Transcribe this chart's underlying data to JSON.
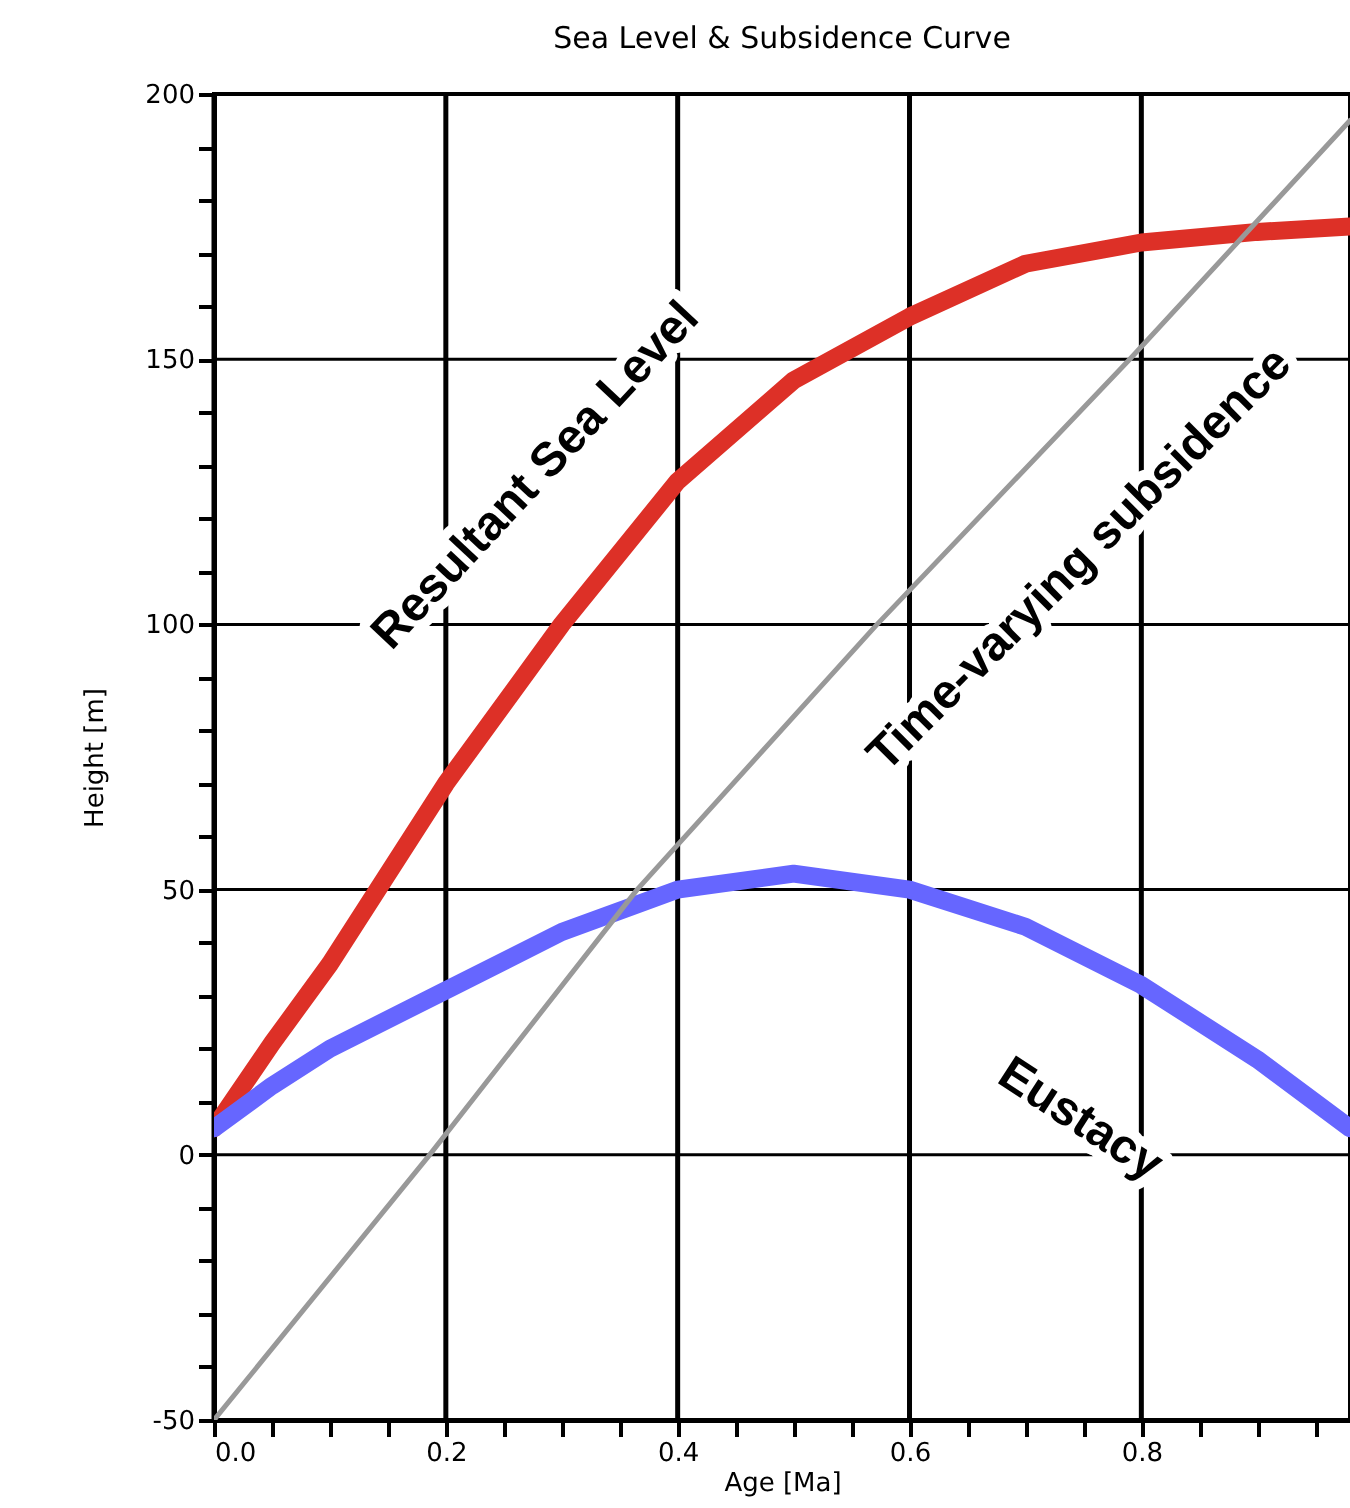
{
  "chart_data": {
    "type": "line",
    "title": "Sea Level & Subsidence Curve",
    "xlabel": "Age [Ma]",
    "ylabel": "Height [m]",
    "x": [
      0,
      0.05,
      0.1,
      0.2,
      0.3,
      0.4,
      0.5,
      0.6,
      0.7,
      0.8,
      0.9,
      0.98
    ],
    "series": [
      {
        "color": "#dd3027",
        "values": [
          5,
          21,
          36,
          70,
          100,
          127,
          146,
          158,
          168,
          172,
          174,
          175
        ]
      },
      {
        "color": "#6666ff",
        "values": [
          5,
          13,
          20,
          31,
          42,
          50,
          53,
          50,
          43,
          32,
          18,
          5
        ]
      },
      {
        "color": "#999999",
        "x": [
          0,
          0.186,
          0.365,
          0.572,
          0.79,
          0.98
        ],
        "values": [
          -50,
          0,
          50,
          100,
          150,
          195
        ]
      }
    ],
    "xlim": [
      0,
      0.98
    ],
    "ylim": [
      -50,
      200
    ],
    "xticks": [
      {
        "value": 0,
        "label": "0.0"
      },
      {
        "value": 0.05,
        "label": null
      },
      {
        "value": 0.1,
        "label": null
      },
      {
        "value": 0.15,
        "label": null
      },
      {
        "value": 0.2,
        "label": "0.2"
      },
      {
        "value": 0.25,
        "label": null
      },
      {
        "value": 0.3,
        "label": null
      },
      {
        "value": 0.35,
        "label": null
      },
      {
        "value": 0.4,
        "label": "0.4"
      },
      {
        "value": 0.45,
        "label": null
      },
      {
        "value": 0.5,
        "label": null
      },
      {
        "value": 0.55,
        "label": null
      },
      {
        "value": 0.6,
        "label": "0.6"
      },
      {
        "value": 0.65,
        "label": null
      },
      {
        "value": 0.7,
        "label": null
      },
      {
        "value": 0.75,
        "label": null
      },
      {
        "value": 0.8,
        "label": "0.8"
      },
      {
        "value": 0.85,
        "label": null
      },
      {
        "value": 0.9,
        "label": null
      },
      {
        "value": 0.95,
        "label": null
      }
    ],
    "yticks": [
      -50,
      {
        "value": -40,
        "label": null
      },
      {
        "value": -30,
        "label": null
      },
      {
        "value": -20,
        "label": null
      },
      {
        "value": -10,
        "label": null
      },
      0,
      {
        "value": 10,
        "label": null
      },
      {
        "value": 20,
        "label": null
      },
      {
        "value": 30,
        "label": null
      },
      {
        "value": 40,
        "label": null
      },
      50,
      {
        "value": 60,
        "label": null
      },
      {
        "value": 70,
        "label": null
      },
      {
        "value": 80,
        "label": null
      },
      {
        "value": 90,
        "label": null
      },
      100,
      {
        "value": 110,
        "label": null
      },
      {
        "value": 120,
        "label": null
      },
      {
        "value": 130,
        "label": null
      },
      {
        "value": 140,
        "label": null
      },
      150,
      {
        "value": 160,
        "label": null
      },
      {
        "value": 170,
        "label": null
      },
      {
        "value": 180,
        "label": null
      },
      {
        "value": 190,
        "label": null
      },
      200
    ],
    "grid": true,
    "marker": "none",
    "line_style": "solid",
    "annotations": [
      "Resultant Sea Level",
      "Time-varying subsidence",
      "Eustacy"
    ]
  }
}
